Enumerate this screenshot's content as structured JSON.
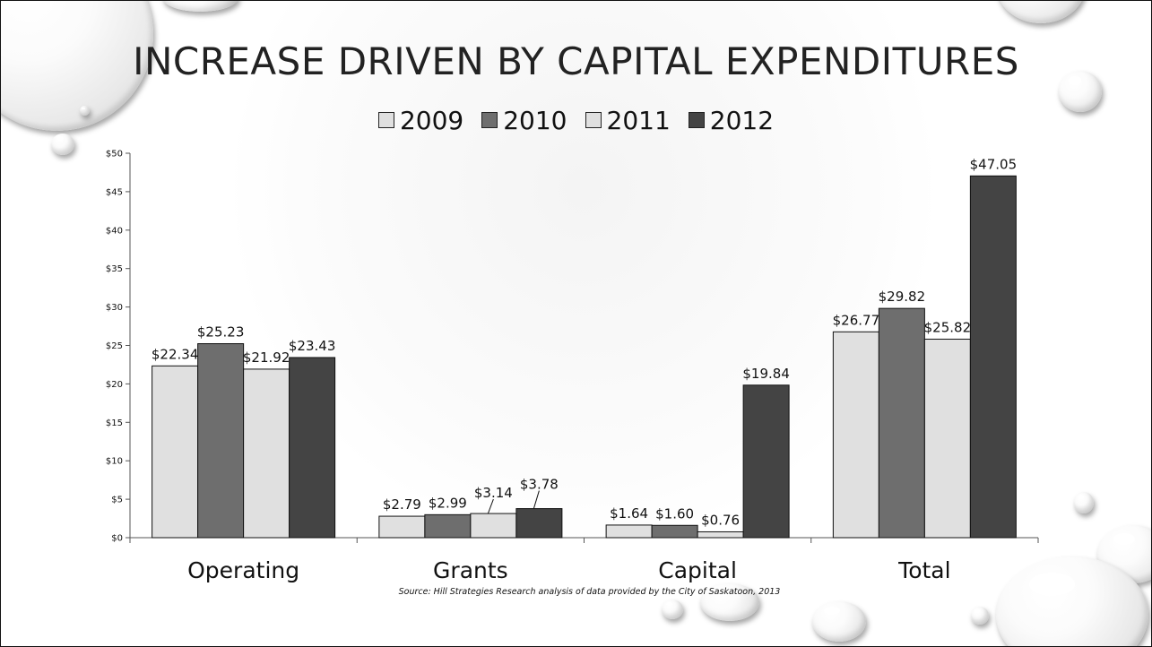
{
  "slide": {
    "title": "INCREASE DRIVEN BY CAPITAL EXPENDITURES"
  },
  "chart_data": {
    "type": "bar",
    "title": "INCREASE DRIVEN BY CAPITAL EXPENDITURES",
    "categories": [
      "Operating",
      "Grants",
      "Capital",
      "Total"
    ],
    "series": [
      {
        "name": "2009",
        "color": "#e0e0e0",
        "values": [
          22.34,
          2.79,
          1.64,
          26.77
        ],
        "labels": [
          "$22.34",
          "$2.79",
          "$1.64",
          "$26.77"
        ]
      },
      {
        "name": "2010",
        "color": "#6e6e6e",
        "values": [
          25.23,
          2.99,
          1.6,
          29.82
        ],
        "labels": [
          "$25.23",
          "$2.99",
          "$1.60",
          "$29.82"
        ]
      },
      {
        "name": "2011",
        "color": "#e0e0e0",
        "values": [
          21.92,
          3.14,
          0.76,
          25.82
        ],
        "labels": [
          "$21.92",
          "$3.14",
          "$0.76",
          "$25.82"
        ]
      },
      {
        "name": "2012",
        "color": "#444444",
        "values": [
          23.43,
          3.78,
          19.84,
          47.05
        ],
        "labels": [
          "$23.43",
          "$3.78",
          "$19.84",
          "$47.05"
        ]
      }
    ],
    "ylim": [
      0,
      50
    ],
    "yticks": [
      0,
      5,
      10,
      15,
      20,
      25,
      30,
      35,
      40,
      45,
      50
    ],
    "ytick_labels": [
      "$0",
      "$5",
      "$10",
      "$15",
      "$20",
      "$25",
      "$30",
      "$35",
      "$40",
      "$45",
      "$50"
    ],
    "legend_position": "top",
    "grid": false,
    "xlabel": "",
    "ylabel": "",
    "source": "Source: Hill Strategies Research analysis of data provided by the City of Saskatoon, 2013"
  }
}
